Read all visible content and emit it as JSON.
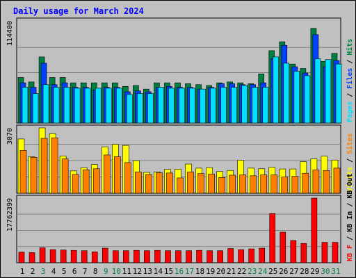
{
  "title": "Daily usage for March 2024",
  "chart_data": [
    {
      "type": "bar",
      "name": "top-panel",
      "ylim": [
        0,
        114400
      ],
      "ytick": "114400",
      "right_labels": [
        "Pages",
        "Files",
        "Hits"
      ],
      "categories": [
        "1",
        "2",
        "3",
        "4",
        "5",
        "6",
        "7",
        "8",
        "9",
        "10",
        "11",
        "12",
        "13",
        "14",
        "15",
        "16",
        "17",
        "18",
        "19",
        "20",
        "21",
        "22",
        "23",
        "24",
        "25",
        "26",
        "27",
        "28",
        "29",
        "30",
        "31"
      ],
      "series": [
        {
          "name": "Hits",
          "color": "#008040",
          "values": [
            51000,
            46000,
            74000,
            51000,
            51000,
            45000,
            45000,
            45000,
            45000,
            45000,
            41000,
            42000,
            38000,
            45000,
            45000,
            45000,
            44000,
            43000,
            42000,
            45000,
            46000,
            45000,
            44000,
            55000,
            81000,
            91000,
            66000,
            61000,
            106000,
            69000,
            78000
          ]
        },
        {
          "name": "Files",
          "color": "#0040ff",
          "values": [
            45000,
            40000,
            67000,
            43000,
            45000,
            40000,
            40000,
            37000,
            40000,
            40000,
            35000,
            36000,
            35000,
            40000,
            41000,
            40000,
            40000,
            38000,
            40000,
            44000,
            44000,
            43000,
            43000,
            45000,
            72000,
            87000,
            63000,
            56000,
            99000,
            63000,
            70000
          ]
        },
        {
          "name": "Pages",
          "color": "#00e0ff",
          "values": [
            40000,
            33000,
            43000,
            40000,
            40000,
            39000,
            39000,
            39000,
            39000,
            39000,
            32000,
            33000,
            33000,
            40000,
            39000,
            39000,
            39000,
            38000,
            39000,
            40000,
            40000,
            42000,
            40000,
            40000,
            74000,
            67000,
            58000,
            53000,
            72000,
            71000,
            66000
          ]
        }
      ]
    },
    {
      "type": "bar",
      "name": "middle-panel",
      "ylim": [
        0,
        3070
      ],
      "ytick": "3070",
      "right_labels": [
        "Visits",
        "Sites"
      ],
      "categories": [
        "1",
        "2",
        "3",
        "4",
        "5",
        "6",
        "7",
        "8",
        "9",
        "10",
        "11",
        "12",
        "13",
        "14",
        "15",
        "16",
        "17",
        "18",
        "19",
        "20",
        "21",
        "22",
        "23",
        "24",
        "25",
        "26",
        "27",
        "28",
        "29",
        "30",
        "31"
      ],
      "series": [
        {
          "name": "Visits",
          "color": "#ffff00",
          "values": [
            2550,
            1720,
            3070,
            2800,
            1750,
            1050,
            1200,
            1350,
            2180,
            2300,
            2250,
            1530,
            980,
            1000,
            1120,
            1130,
            1370,
            1180,
            1200,
            1020,
            1070,
            1550,
            1180,
            1150,
            1220,
            1140,
            1140,
            1480,
            1610,
            1740,
            1560
          ]
        },
        {
          "name": "Sites",
          "color": "#ff8000",
          "values": [
            2010,
            1690,
            2580,
            2600,
            1610,
            880,
            1100,
            1150,
            1800,
            1720,
            1440,
            1000,
            880,
            960,
            950,
            720,
            1000,
            930,
            900,
            740,
            850,
            860,
            820,
            860,
            860,
            760,
            800,
            940,
            1100,
            1070,
            1180
          ]
        }
      ]
    },
    {
      "type": "bar",
      "name": "bottom-panel",
      "ylim": [
        0,
        17762399
      ],
      "ytick": "17762399",
      "right_labels": [
        "KB F",
        "KB In",
        "KB Out"
      ],
      "categories": [
        "1",
        "2",
        "3",
        "4",
        "5",
        "6",
        "7",
        "8",
        "9",
        "10",
        "11",
        "12",
        "13",
        "14",
        "15",
        "16",
        "17",
        "18",
        "19",
        "20",
        "21",
        "22",
        "23",
        "24",
        "25",
        "26",
        "27",
        "28",
        "29",
        "30",
        "31"
      ],
      "series": [
        {
          "name": "KB F",
          "color": "#ff0000",
          "values": [
            2900,
            2800,
            4100,
            3600,
            3500,
            3400,
            3300,
            3000,
            4000,
            3300,
            3300,
            3400,
            3300,
            3400,
            3300,
            3300,
            3300,
            3400,
            3300,
            3300,
            3900,
            3600,
            3800,
            4000,
            13500,
            8400,
            6100,
            5300,
            17762,
            5600,
            5600
          ],
          "scale": 1000
        }
      ]
    }
  ],
  "x_label_colors": [
    "#000000",
    "#000000",
    "#008040",
    "#000000",
    "#000000",
    "#000000",
    "#000000",
    "#000000",
    "#008040",
    "#008040",
    "#000000",
    "#000000",
    "#000000",
    "#000000",
    "#000000",
    "#008040",
    "#008040",
    "#000000",
    "#000000",
    "#000000",
    "#000000",
    "#000000",
    "#008040",
    "#008040",
    "#000000",
    "#000000",
    "#000000",
    "#000000",
    "#000000",
    "#008040",
    "#008040"
  ],
  "colors": {
    "background": "#c0c0c0",
    "title": "#0000ff",
    "grid": "#808080",
    "frame": "#000000"
  }
}
